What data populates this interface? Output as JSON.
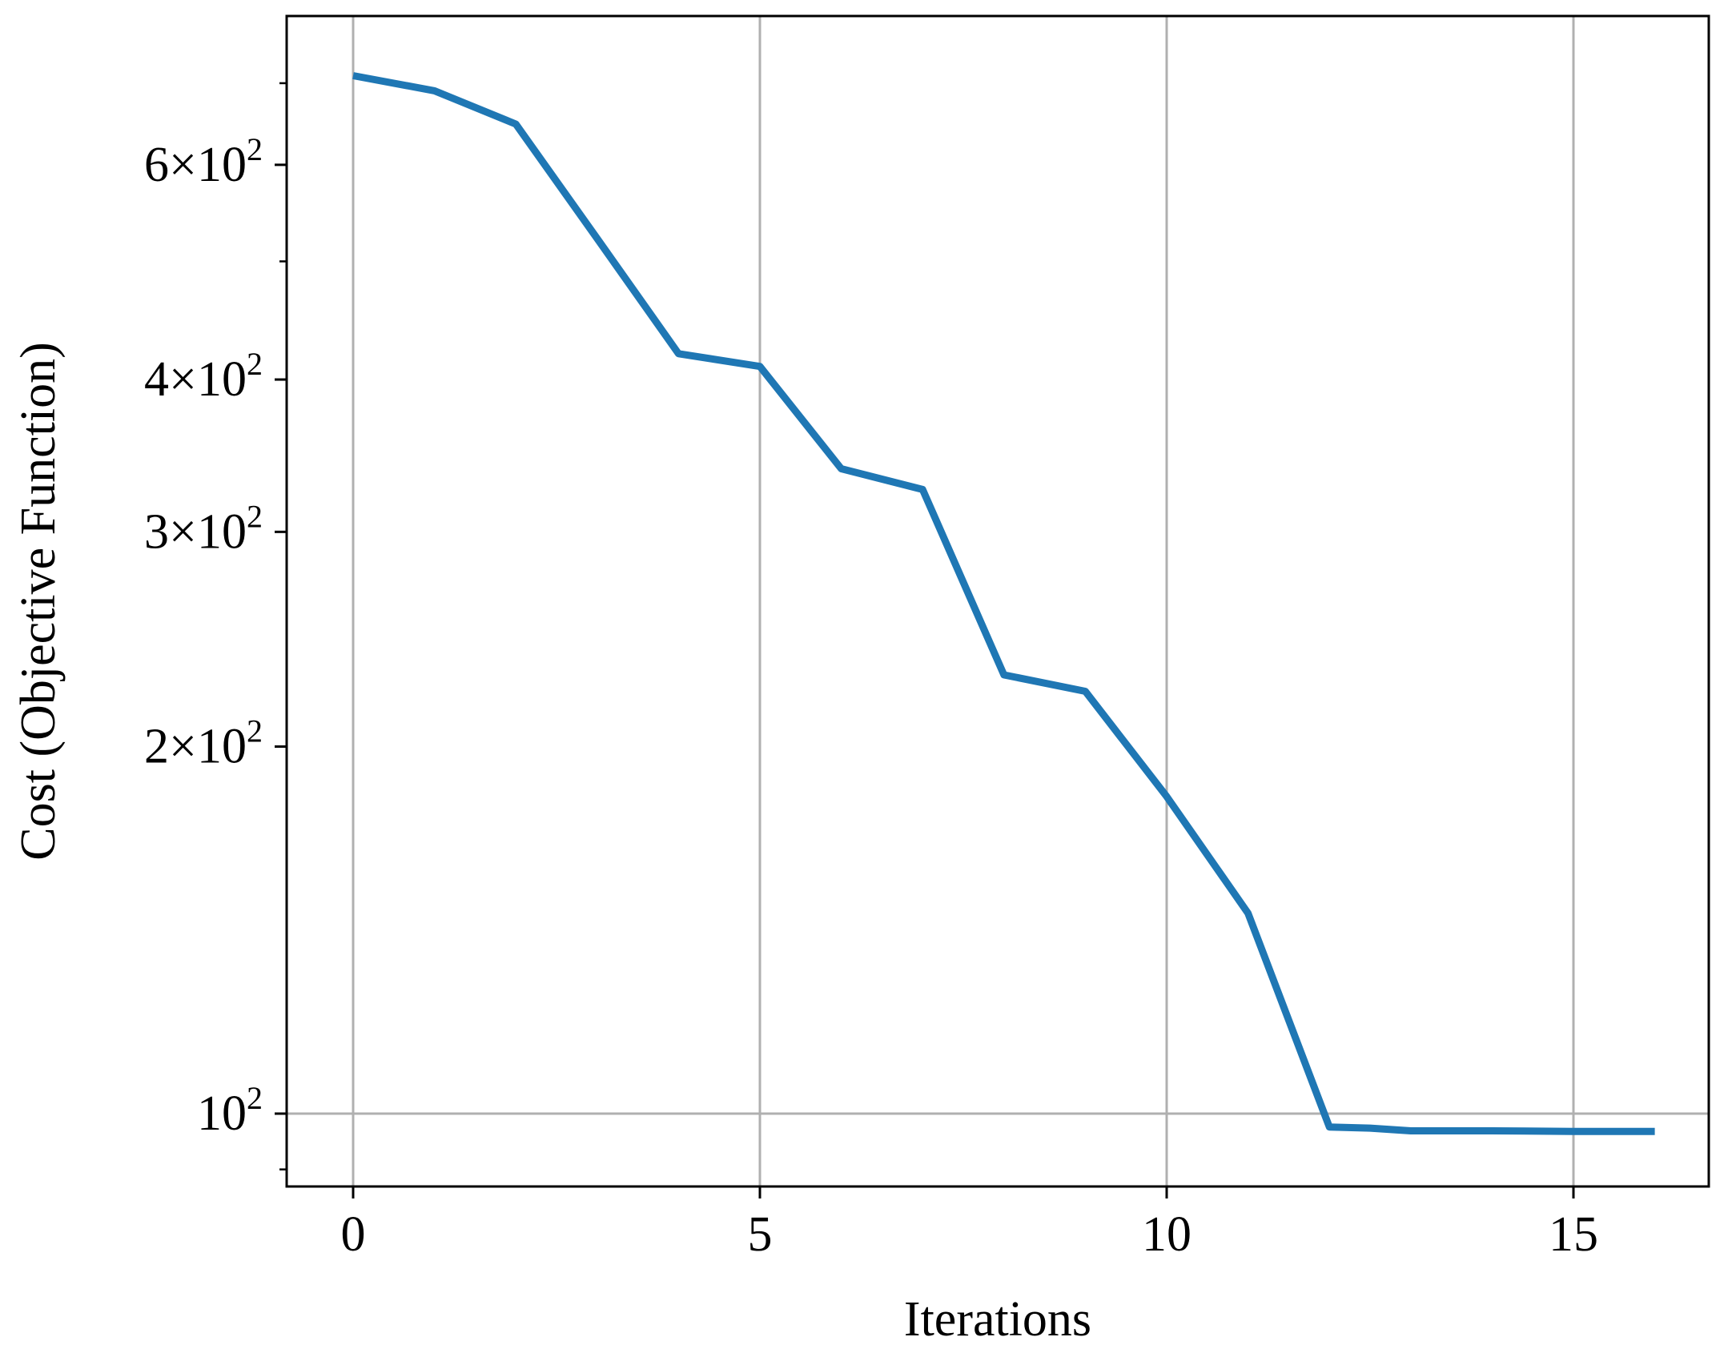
{
  "chart_data": {
    "type": "line",
    "title": "",
    "xlabel": "Iterations",
    "ylabel": "Cost (Objective Function)",
    "xlim": [
      -0.8,
      16.6
    ],
    "ylim": [
      90,
      750
    ],
    "y_scale": "log",
    "grid": true,
    "legend": "none",
    "x_ticks": [
      0,
      5,
      10,
      15
    ],
    "x_tick_labels": [
      "0",
      "5",
      "10",
      "15"
    ],
    "y_major_ticks": [
      {
        "value": 100,
        "mantissa": "",
        "base": "10",
        "exp": "2"
      },
      {
        "value": 200,
        "mantissa": "2",
        "base": "10",
        "exp": "2"
      },
      {
        "value": 300,
        "mantissa": "3",
        "base": "10",
        "exp": "2"
      },
      {
        "value": 400,
        "mantissa": "4",
        "base": "10",
        "exp": "2"
      },
      {
        "value": 600,
        "mantissa": "6",
        "base": "10",
        "exp": "2"
      }
    ],
    "y_minor_ticks": [
      90,
      500,
      700
    ],
    "series": [
      {
        "color": "#1f77b4",
        "x": [
          0,
          1,
          2,
          3,
          4,
          5,
          6,
          7,
          8,
          9,
          10,
          11,
          12,
          12.5,
          13,
          14,
          15,
          16
        ],
        "y": [
          710,
          690,
          648,
          522,
          420,
          410,
          338,
          325,
          229,
          222,
          182,
          146,
          97.5,
          97.3,
          96.8,
          96.8,
          96.7,
          96.7
        ]
      }
    ]
  }
}
